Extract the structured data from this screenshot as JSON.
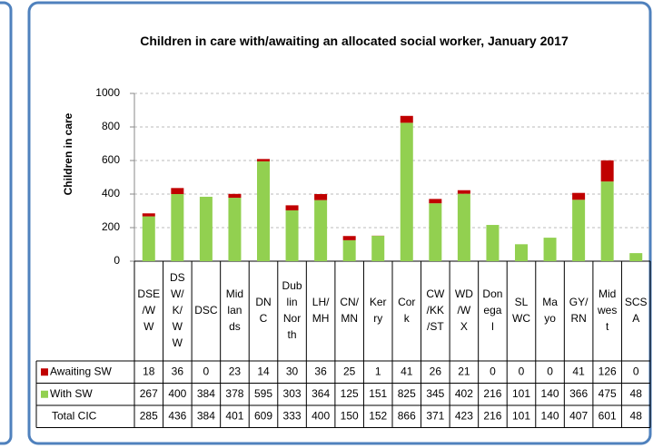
{
  "chart_data": {
    "type": "stacked_bar",
    "title": "Children in care with/awaiting an allocated social worker, January 2017",
    "ylabel": "Children in care",
    "categories": [
      [
        "DSE",
        "/W",
        "W"
      ],
      [
        "DS",
        "W/",
        "K/",
        "W",
        "W"
      ],
      [
        "DSC"
      ],
      [
        "Mid",
        "lan",
        "ds"
      ],
      [
        "DN",
        "C"
      ],
      [
        "Dub",
        "lin",
        "Nor",
        "th"
      ],
      [
        "LH/",
        "MH"
      ],
      [
        "CN/",
        "MN"
      ],
      [
        "Ker",
        "ry"
      ],
      [
        "Cor",
        "k"
      ],
      [
        "CW",
        "/KK",
        "/ST"
      ],
      [
        "WD",
        "/W",
        "X"
      ],
      [
        "Don",
        "ega",
        "l"
      ],
      [
        "SL",
        "WC"
      ],
      [
        "Ma",
        "yo"
      ],
      [
        "GY/",
        "RN"
      ],
      [
        "Mid",
        "wes",
        "t"
      ],
      [
        "SCS",
        "A"
      ]
    ],
    "series": [
      {
        "name": "With SW",
        "color": "#92d050",
        "values": [
          267,
          400,
          384,
          378,
          595,
          303,
          364,
          125,
          151,
          825,
          345,
          402,
          216,
          101,
          140,
          366,
          475,
          48
        ]
      },
      {
        "name": "Awaiting SW",
        "color": "#c00000",
        "values": [
          18,
          36,
          0,
          23,
          14,
          30,
          36,
          25,
          1,
          41,
          26,
          21,
          0,
          0,
          0,
          41,
          126,
          0
        ]
      }
    ],
    "total_label": "Total  CIC",
    "totals": [
      285,
      436,
      384,
      401,
      609,
      333,
      400,
      150,
      152,
      866,
      371,
      423,
      216,
      101,
      140,
      407,
      601,
      48
    ],
    "ylim": [
      0,
      1000
    ],
    "yticks": [
      0,
      200,
      400,
      600,
      800,
      1000
    ],
    "grid": true
  }
}
